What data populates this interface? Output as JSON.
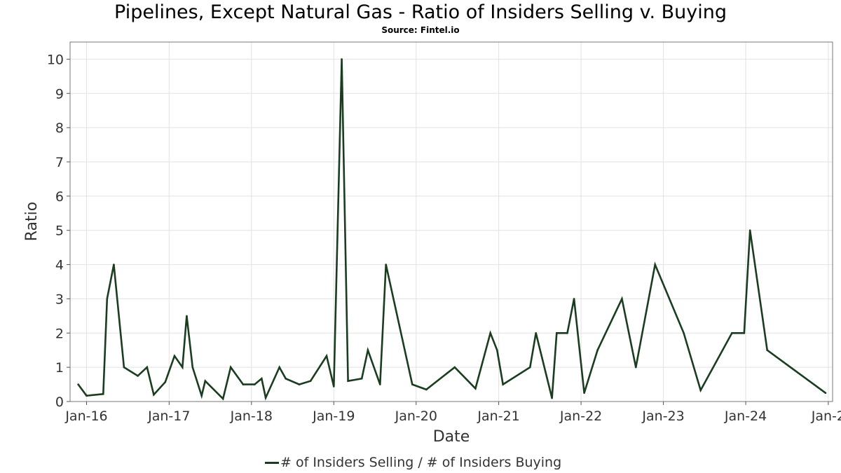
{
  "chart_data": {
    "type": "line",
    "title": "Pipelines, Except Natural Gas - Ratio of Insiders Selling v. Buying",
    "subtitle": "Source: Fintel.io",
    "xlabel": "Date",
    "ylabel": "Ratio",
    "ylim": [
      0,
      10.5
    ],
    "xlim": [
      "2015-10-20",
      "2025-01-20"
    ],
    "yticks": [
      0,
      1,
      2,
      3,
      4,
      5,
      6,
      7,
      8,
      9,
      10
    ],
    "xticks": [
      {
        "date": "2016-01-01",
        "label": "Jan-16"
      },
      {
        "date": "2017-01-01",
        "label": "Jan-17"
      },
      {
        "date": "2018-01-01",
        "label": "Jan-18"
      },
      {
        "date": "2019-01-01",
        "label": "Jan-19"
      },
      {
        "date": "2020-01-01",
        "label": "Jan-20"
      },
      {
        "date": "2021-01-01",
        "label": "Jan-21"
      },
      {
        "date": "2022-01-01",
        "label": "Jan-22"
      },
      {
        "date": "2023-01-01",
        "label": "Jan-23"
      },
      {
        "date": "2024-01-01",
        "label": "Jan-24"
      },
      {
        "date": "2025-01-01",
        "label": "Jan-2"
      }
    ],
    "grid": true,
    "legend_position": "bottom",
    "series": [
      {
        "name": "# of Insiders Selling / # of Insiders Buying",
        "color": "#1a3d20",
        "points": [
          [
            "2015-11-25",
            0.5
          ],
          [
            "2016-01-01",
            0.17
          ],
          [
            "2016-03-15",
            0.22
          ],
          [
            "2016-04-01",
            3.0
          ],
          [
            "2016-05-01",
            4.0
          ],
          [
            "2016-06-15",
            1.0
          ],
          [
            "2016-08-15",
            0.75
          ],
          [
            "2016-09-25",
            1.0
          ],
          [
            "2016-10-25",
            0.2
          ],
          [
            "2016-12-15",
            0.57
          ],
          [
            "2017-01-25",
            1.33
          ],
          [
            "2017-03-01",
            1.0
          ],
          [
            "2017-03-20",
            2.5
          ],
          [
            "2017-04-15",
            1.0
          ],
          [
            "2017-05-25",
            0.17
          ],
          [
            "2017-06-10",
            0.6
          ],
          [
            "2017-08-28",
            0.08
          ],
          [
            "2017-10-01",
            1.0
          ],
          [
            "2017-11-25",
            0.5
          ],
          [
            "2018-01-15",
            0.5
          ],
          [
            "2018-02-15",
            0.67
          ],
          [
            "2018-03-05",
            0.11
          ],
          [
            "2018-05-05",
            1.0
          ],
          [
            "2018-06-02",
            0.67
          ],
          [
            "2018-08-01",
            0.5
          ],
          [
            "2018-09-20",
            0.6
          ],
          [
            "2018-11-30",
            1.33
          ],
          [
            "2019-01-01",
            0.44
          ],
          [
            "2019-02-05",
            10.0
          ],
          [
            "2019-03-05",
            0.6
          ],
          [
            "2019-05-05",
            0.67
          ],
          [
            "2019-06-01",
            1.5
          ],
          [
            "2019-07-25",
            0.5
          ],
          [
            "2019-08-20",
            4.0
          ],
          [
            "2019-12-15",
            0.5
          ],
          [
            "2020-02-15",
            0.35
          ],
          [
            "2020-06-20",
            1.0
          ],
          [
            "2020-09-20",
            0.38
          ],
          [
            "2020-11-25",
            2.0
          ],
          [
            "2020-12-25",
            1.5
          ],
          [
            "2021-01-20",
            0.5
          ],
          [
            "2021-05-20",
            1.0
          ],
          [
            "2021-06-15",
            2.0
          ],
          [
            "2021-08-25",
            0.1
          ],
          [
            "2021-09-15",
            2.0
          ],
          [
            "2021-11-01",
            2.0
          ],
          [
            "2021-12-01",
            3.0
          ],
          [
            "2022-01-15",
            0.25
          ],
          [
            "2022-03-15",
            1.5
          ],
          [
            "2022-07-01",
            3.0
          ],
          [
            "2022-09-01",
            1.0
          ],
          [
            "2022-11-25",
            4.0
          ],
          [
            "2023-04-01",
            2.0
          ],
          [
            "2023-06-15",
            0.33
          ],
          [
            "2023-11-01",
            2.0
          ],
          [
            "2023-12-25",
            2.0
          ],
          [
            "2024-01-20",
            5.0
          ],
          [
            "2024-04-05",
            1.5
          ],
          [
            "2024-12-20",
            0.25
          ]
        ]
      }
    ]
  }
}
